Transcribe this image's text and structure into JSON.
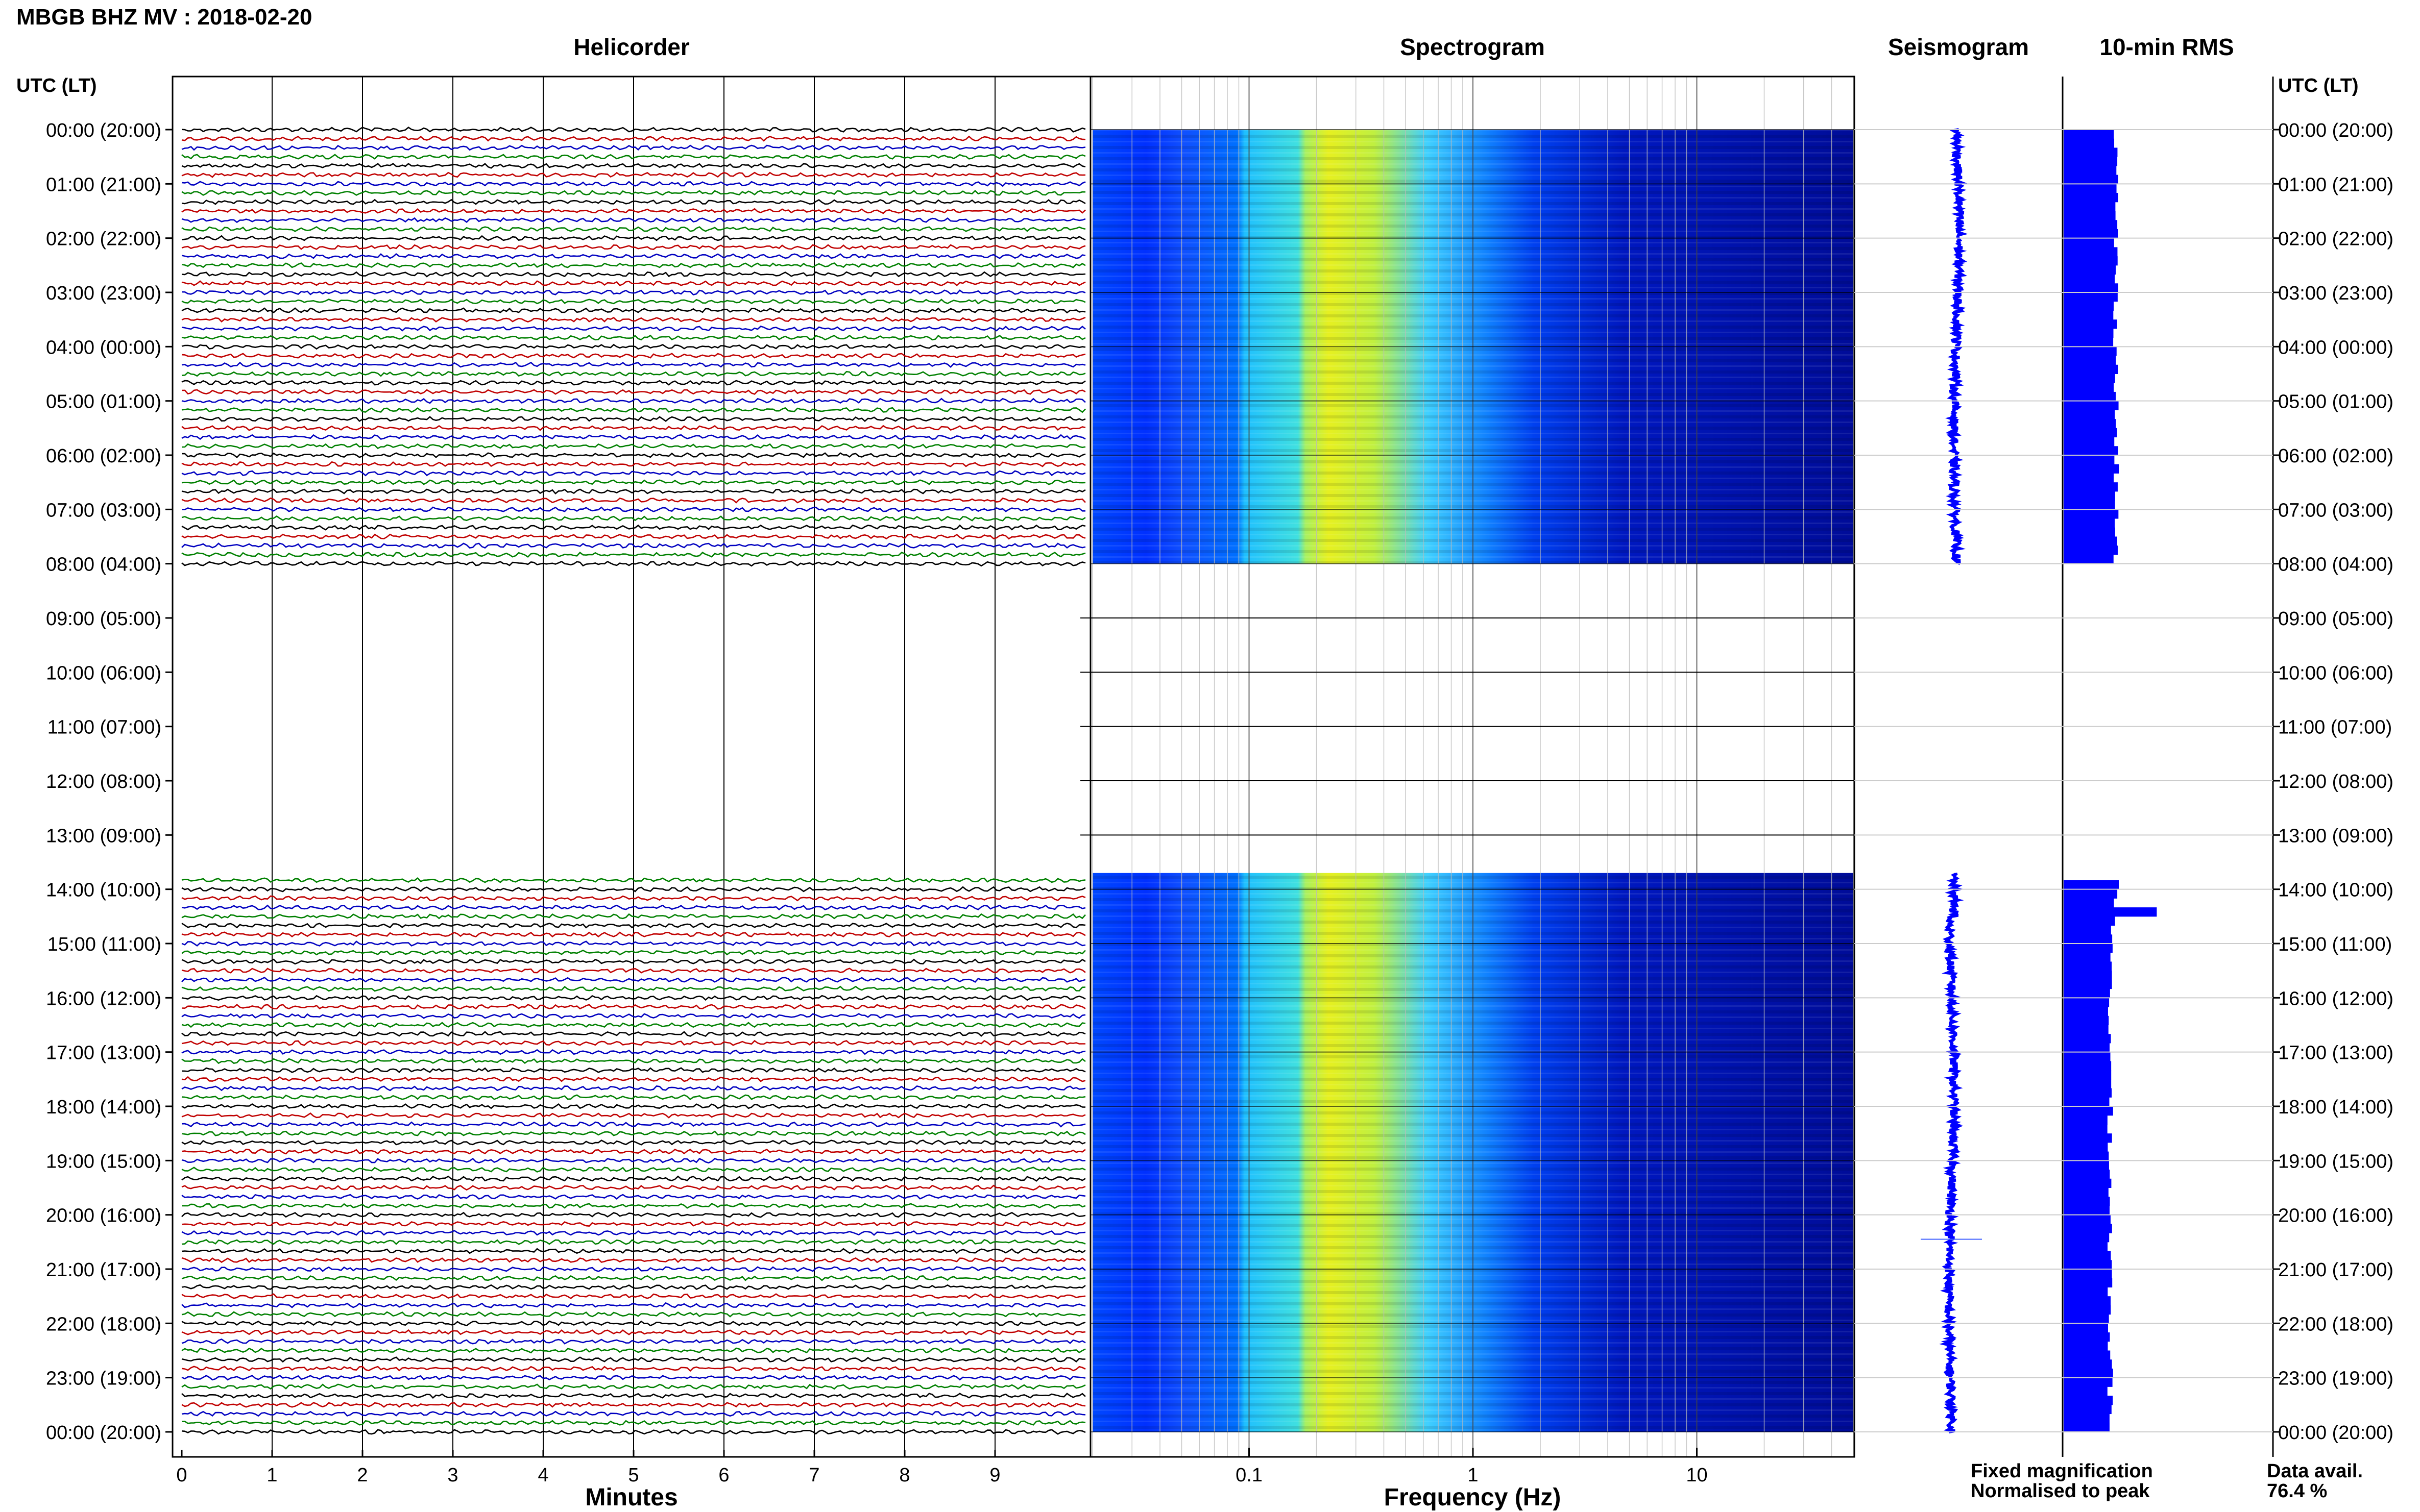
{
  "chart_data": {
    "type": "composite",
    "title": "MBGB BHZ MV : 2018-02-20",
    "panels": {
      "helicorder": "Helicorder",
      "spectrogram": "Spectrogram",
      "seismogram": "Seismogram",
      "rms": "10-min RMS"
    },
    "time_axis_label": "UTC (LT)",
    "time_labels": [
      "00:00 (20:00)",
      "01:00 (21:00)",
      "02:00 (22:00)",
      "03:00 (23:00)",
      "04:00 (00:00)",
      "05:00 (01:00)",
      "06:00 (02:00)",
      "07:00 (03:00)",
      "08:00 (04:00)",
      "09:00 (05:00)",
      "10:00 (06:00)",
      "11:00 (07:00)",
      "12:00 (08:00)",
      "13:00 (09:00)",
      "14:00 (10:00)",
      "15:00 (11:00)",
      "16:00 (12:00)",
      "17:00 (13:00)",
      "18:00 (14:00)",
      "19:00 (15:00)",
      "20:00 (16:00)",
      "21:00 (17:00)",
      "22:00 (18:00)",
      "23:00 (19:00)",
      "00:00 (20:00)"
    ],
    "data_segments_hours": [
      [
        0,
        8
      ],
      [
        13.7,
        24
      ]
    ],
    "helicorder_axis": {
      "xlabel": "Minutes",
      "ticks": [
        "0",
        "1",
        "2",
        "3",
        "4",
        "5",
        "6",
        "7",
        "8",
        "9"
      ],
      "xlim": [
        0,
        10
      ],
      "trace_colors": [
        "#000000",
        "#c00000",
        "#0000c0",
        "#008000"
      ]
    },
    "spectrogram_axis": {
      "xlabel": "Frequency (Hz)",
      "scale": "log",
      "xlim": [
        0.02,
        50
      ],
      "ticks": [
        {
          "value": 0.1,
          "label": "0.1"
        },
        {
          "value": 1,
          "label": "1"
        },
        {
          "value": 10,
          "label": "10"
        }
      ],
      "colormap": [
        "#0000a0",
        "#0000ff",
        "#0080ff",
        "#00e0ff",
        "#80ff80",
        "#ffff00"
      ]
    },
    "rms_bars_note": "relative RMS per 10-min window, 0-1 scale",
    "legend": {
      "fixed": "Fixed magnification",
      "normalised": "Normalised to peak",
      "fixed_color": "#0000ff",
      "normalised_color": "#ff0000"
    },
    "data_availability": {
      "label": "Data avail.",
      "value": "76.4 %"
    }
  }
}
